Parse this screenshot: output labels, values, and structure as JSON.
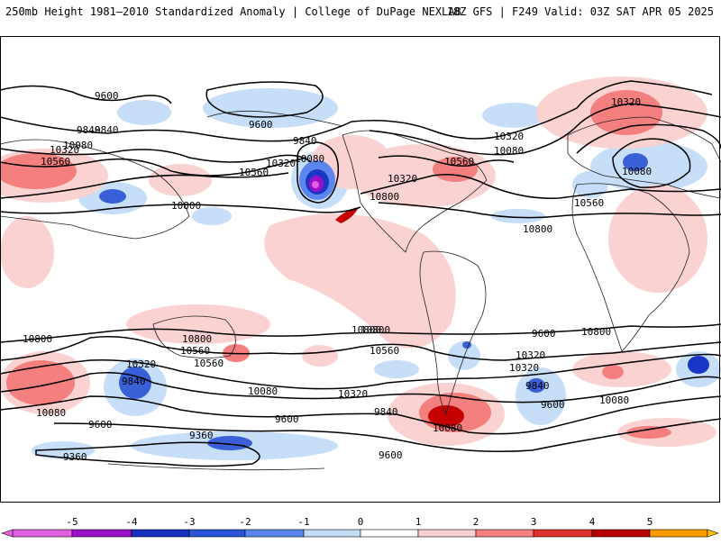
{
  "header": {
    "title_left": "250mb Height 1981–2010 Standardized Anomaly | College of DuPage NEXLAB",
    "title_right": "18Z GFS | F249 Valid: 03Z SAT APR 05 2025"
  },
  "contour_labels": [
    "9600",
    "9840",
    "10080",
    "10320",
    "10560",
    "10800",
    "9600",
    "9840",
    "10080",
    "10320",
    "10320",
    "10560",
    "10080",
    "10800",
    "10560",
    "10320",
    "10320",
    "10560",
    "10800",
    "10800",
    "10560",
    "10800",
    "10320",
    "10080",
    "9840",
    "10800",
    "10320",
    "9840",
    "10080",
    "9600",
    "10560",
    "10320",
    "9840",
    "9600",
    "10080",
    "9600",
    "9360",
    "9360",
    "9600",
    "10080",
    "10560",
    "10800",
    "9840",
    "10080",
    "9600",
    "10320",
    "10800"
  ],
  "colorbar": {
    "labels": [
      "-5",
      "-4",
      "-3",
      "-2",
      "-1",
      "0",
      "1",
      "2",
      "3",
      "4",
      "5"
    ],
    "colors": {
      "neg5": "#e060e0",
      "neg45": "#9a10c8",
      "neg4": "#1830c0",
      "neg3": "#2a55d8",
      "neg2": "#5a86ee",
      "neg1": "#c3ddf7",
      "zero": "#ffffff",
      "pos1": "#fbd0d0",
      "pos2": "#f48080",
      "pos3": "#e03030",
      "pos4": "#b80000",
      "pos45": "#ff9a00",
      "pos5": "#ffc000"
    }
  }
}
